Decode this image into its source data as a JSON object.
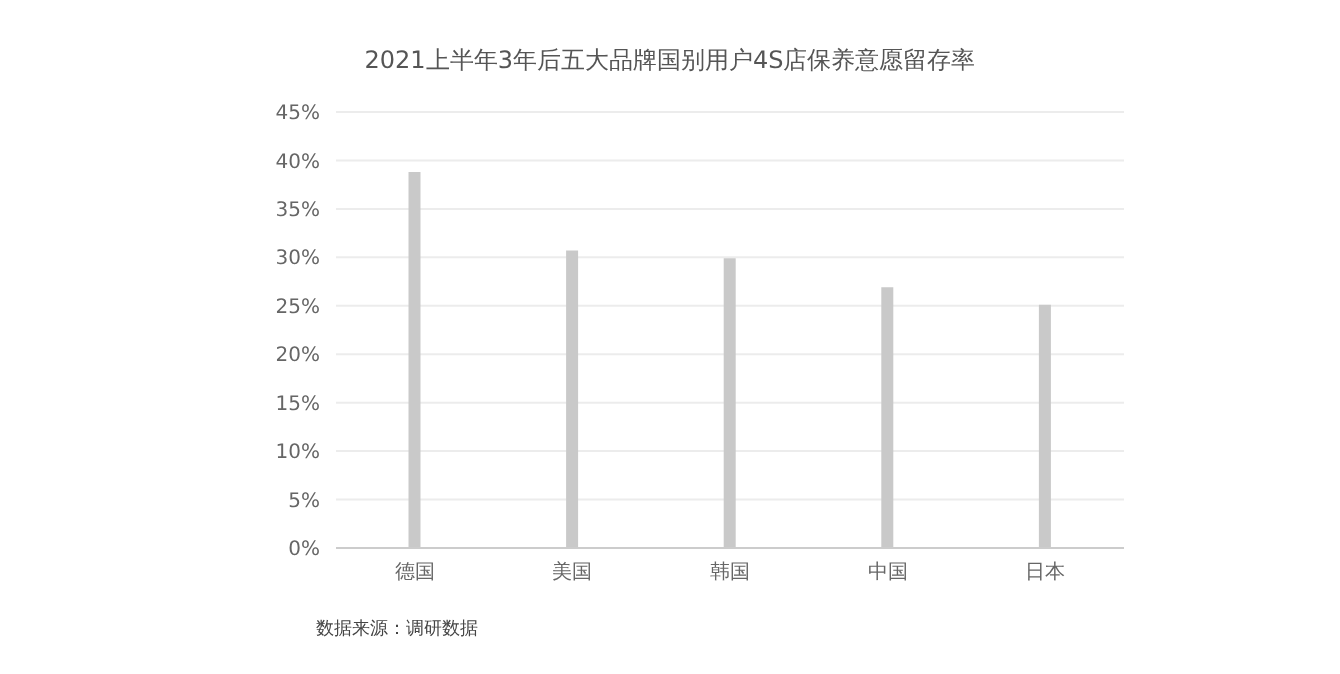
{
  "chart_data": {
    "type": "bar",
    "title": "2021上半年3年后五大品牌国别用户4S店保养意愿留存率",
    "categories": [
      "德国",
      "美国",
      "韩国",
      "中国",
      "日本"
    ],
    "values": [
      38.8,
      30.7,
      29.9,
      26.9,
      25.1
    ],
    "color": "#c9c9c9",
    "ylim": [
      0,
      45
    ],
    "yticks": [
      {
        "value": 0,
        "label": "0%"
      },
      {
        "value": 5,
        "label": "5%"
      },
      {
        "value": 10,
        "label": "10%"
      },
      {
        "value": 15,
        "label": "15%"
      },
      {
        "value": 20,
        "label": "20%"
      },
      {
        "value": 25,
        "label": "25%"
      },
      {
        "value": 30,
        "label": "30%"
      },
      {
        "value": 35,
        "label": "35%"
      },
      {
        "value": 40,
        "label": "40%"
      },
      {
        "value": 45,
        "label": "45%"
      }
    ],
    "grid": "y",
    "legend": false,
    "annotations": [
      "数据来源：调研数据"
    ]
  }
}
